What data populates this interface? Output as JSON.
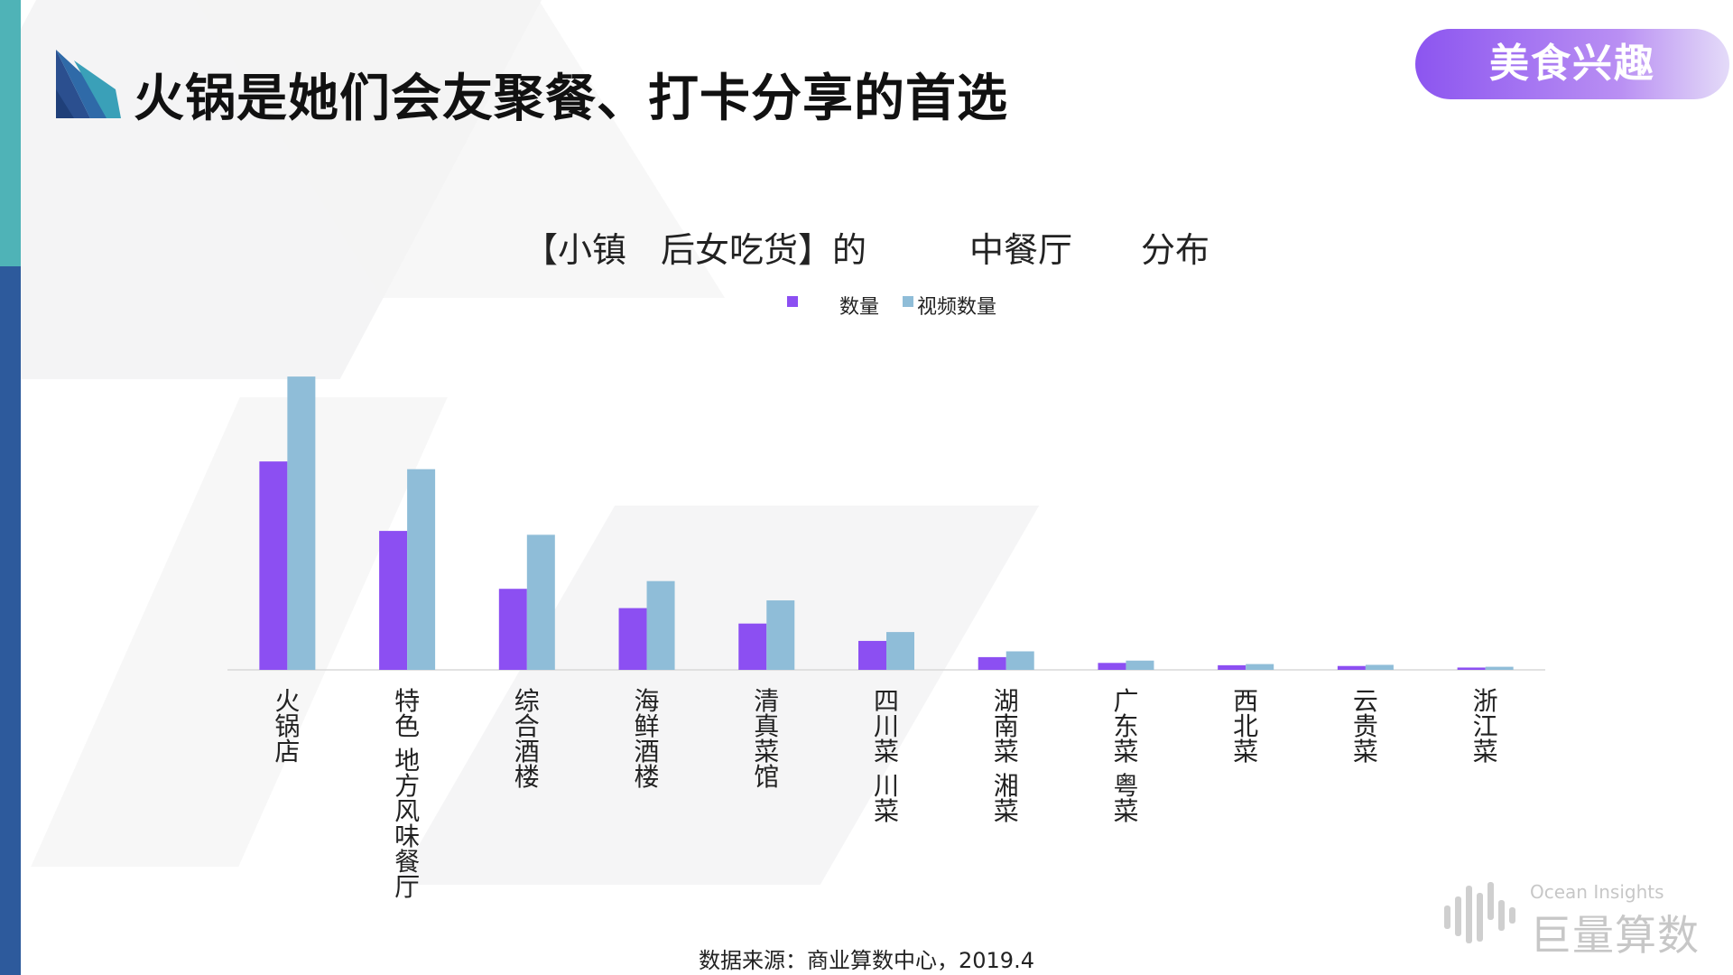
{
  "header": {
    "title": "火锅是她们会友聚餐、打卡分享的首选",
    "badge": "美食兴趣"
  },
  "legend": {
    "series1": "数量",
    "series2": "视频数量"
  },
  "source": "数据来源：商业算数中心，2019.4",
  "watermark": {
    "en": "Ocean Insights",
    "cn": "巨量算数"
  },
  "colors": {
    "series1": "#8c4ff2",
    "series2": "#8fbdd8",
    "accent_teal": "#4fb3b7",
    "accent_blue": "#2d5a9c"
  },
  "chart_data": {
    "type": "bar",
    "title": "【小镇　后女吃货】的　　　中餐厅　　分布",
    "categories": [
      "火锅店",
      "特色 地方风味餐厅",
      "综合酒楼",
      "海鲜酒楼",
      "清真菜馆",
      "四川菜 川菜",
      "湖南菜 湘菜",
      "广东菜 粤菜",
      "西北菜",
      "云贵菜",
      "浙江菜"
    ],
    "series": [
      {
        "name": "数量",
        "values": [
          54,
          36,
          21,
          16,
          12,
          7.5,
          3.3,
          1.8,
          1.2,
          1.0,
          0.6
        ]
      },
      {
        "name": "视频数量",
        "values": [
          76,
          52,
          35,
          23,
          18,
          9.8,
          4.8,
          2.4,
          1.5,
          1.3,
          0.8
        ]
      }
    ],
    "ylim": [
      0,
      80
    ],
    "xlabel": "",
    "ylabel": "",
    "grid": false,
    "legend_position": "top-center"
  }
}
